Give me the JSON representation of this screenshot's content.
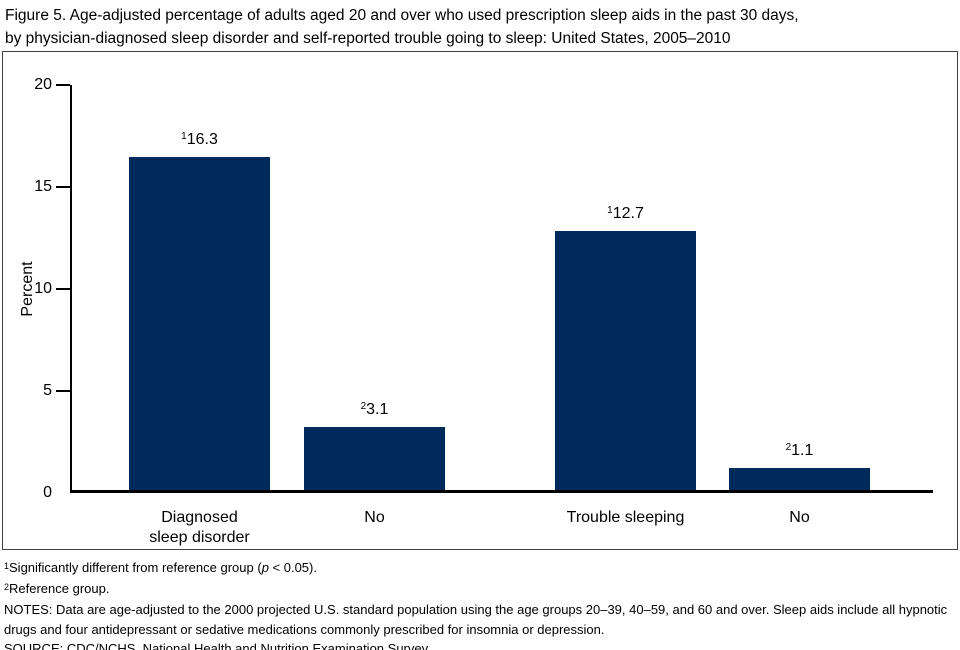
{
  "figure": {
    "title_line1": "Figure 5. Age-adjusted percentage of adults aged 20 and over who used prescription sleep aids in the past 30 days,",
    "title_line2": "by physician-diagnosed sleep disorder and self-reported trouble going to sleep: United States, 2005–2010"
  },
  "chart_data": {
    "type": "bar",
    "title": "Age-adjusted percentage of adults aged 20 and over who used prescription sleep aids in the past 30 days",
    "xlabel": "",
    "ylabel": "Percent",
    "ylim": [
      0,
      20
    ],
    "yticks": [
      0,
      5,
      10,
      15,
      20
    ],
    "ticked_yticks": [
      5,
      10,
      15,
      20
    ],
    "grid": false,
    "legend": "none",
    "bar_color": "#002a5c",
    "categories": [
      [
        "Diagnosed",
        "sleep disorder"
      ],
      [
        "No"
      ],
      [
        "Trouble sleeping"
      ],
      [
        "No"
      ]
    ],
    "values": [
      16.3,
      3.1,
      12.7,
      1.1
    ],
    "value_labels": [
      "16.3",
      "3.1",
      "12.7",
      "1.1"
    ],
    "value_label_sups": [
      "1",
      "2",
      "1",
      "2"
    ]
  },
  "footnotes": {
    "fn1_sup": "1",
    "fn1_pre": "Significantly different from reference group (",
    "fn1_italic": "p",
    "fn1_post": " < 0.05).",
    "fn2_sup": "2",
    "fn2_text": "Reference group.",
    "notes": "NOTES: Data are age-adjusted to the 2000 projected U.S. standard population using the age groups 20–39, 40–59, and 60 and over. Sleep aids include all hypnotic drugs and four antidepressant or sedative medications commonly prescribed for insomnia or depression.",
    "source": "SOURCE: CDC/NCHS, National Health and Nutrition Examination Survey."
  }
}
